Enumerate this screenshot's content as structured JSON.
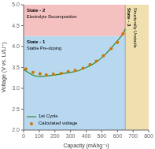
{
  "chart_data": {
    "type": "line",
    "xlabel": "Capacity (mAhg⁻¹)",
    "ylabel": "Voltage (V vs. Li/Li⁺)",
    "xlim": [
      0,
      800
    ],
    "ylim": [
      2.0,
      5.0
    ],
    "xticks": [
      0,
      100,
      200,
      300,
      400,
      500,
      600,
      700,
      800
    ],
    "yticks": [
      {
        "value": 2.0,
        "label": "2.0"
      },
      2.5,
      {
        "value": 3.0,
        "label": "3.0"
      },
      3.5,
      {
        "value": 4.0,
        "label": "4.0"
      },
      4.5,
      {
        "value": 5.0,
        "label": "5.0"
      }
    ],
    "grid": false,
    "legend": "lower left",
    "series": [
      {
        "name": "1st Cycle",
        "type": "line",
        "color": "#2a8a2a",
        "x": [
          0,
          20,
          50,
          80,
          120,
          160,
          200,
          250,
          300,
          350,
          400,
          430,
          460,
          490,
          520,
          550,
          580,
          610,
          635,
          650
        ],
        "values": [
          3.46,
          3.4,
          3.33,
          3.29,
          3.28,
          3.3,
          3.32,
          3.35,
          3.38,
          3.42,
          3.5,
          3.55,
          3.62,
          3.7,
          3.8,
          3.92,
          4.05,
          4.18,
          4.3,
          4.42
        ]
      },
      {
        "name": "Calculated voltage",
        "type": "scatter",
        "marker": "o",
        "color": "#cc7700",
        "x": [
          15,
          60,
          105,
          145,
          190,
          240,
          285,
          330,
          380,
          425,
          465,
          510,
          560,
          600,
          635
        ],
        "values": [
          3.46,
          3.38,
          3.35,
          3.32,
          3.34,
          3.36,
          3.4,
          3.43,
          3.48,
          3.57,
          3.65,
          3.78,
          3.95,
          4.1,
          4.3
        ]
      }
    ],
    "regions": [
      {
        "x": [
          0,
          650
        ],
        "y": [
          4.25,
          5.0
        ],
        "color": "#f5c0c0",
        "label": [
          "State - 2",
          "Electrolyte Decomposition"
        ]
      },
      {
        "x": [
          0,
          650
        ],
        "y": [
          2.0,
          4.25
        ],
        "color": "#b8d8f0",
        "label": [
          "State - 1",
          "Stable Pre-doping"
        ]
      },
      {
        "x": [
          650,
          800
        ],
        "y": [
          2.0,
          5.0
        ],
        "color": "#f0e0b0",
        "label": [
          "State - 3",
          "Structurally Unstable"
        ]
      }
    ]
  }
}
